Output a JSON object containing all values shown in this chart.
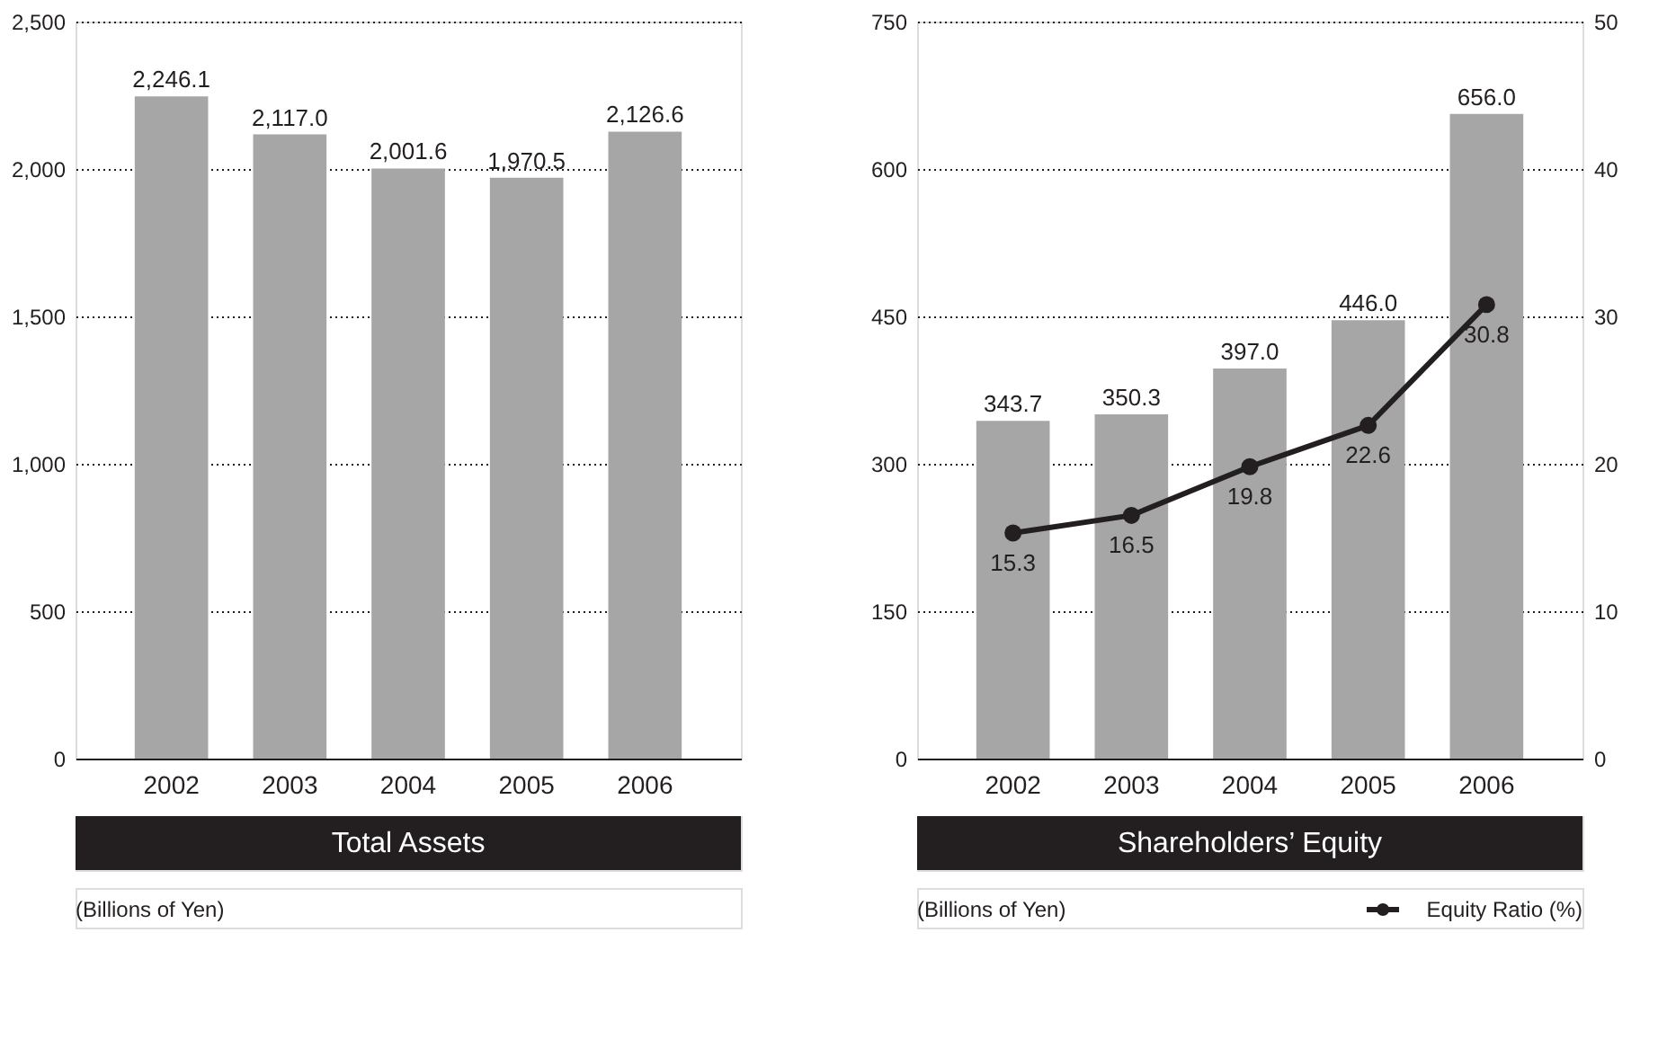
{
  "chart_data": [
    {
      "type": "bar",
      "title": "Total Assets",
      "annotations": [
        "(Billions of Yen)"
      ],
      "categories": [
        "2002",
        "2003",
        "2004",
        "2005",
        "2006"
      ],
      "values": [
        2246.1,
        2117.0,
        2001.6,
        1970.5,
        2126.6
      ],
      "value_labels": [
        "2,246.1",
        "2,117.0",
        "2,001.6",
        "1,970.5",
        "2,126.6"
      ],
      "color": "#a6a6a6",
      "ylim": [
        0,
        2500
      ],
      "yticks": [
        0,
        500,
        {
          "value": 1000,
          "label": "1,000"
        },
        {
          "value": 1500,
          "label": "1,500"
        },
        {
          "value": 2000,
          "label": "2,000"
        },
        {
          "value": 2500,
          "label": "2,500"
        }
      ],
      "grid": "y"
    },
    {
      "type": "bar",
      "title": "Shareholders’ Equity",
      "annotations": [
        "(Billions of Yen)"
      ],
      "categories": [
        "2002",
        "2003",
        "2004",
        "2005",
        "2006"
      ],
      "series": [
        {
          "type": "bar",
          "color": "#a6a6a6",
          "values": [
            343.7,
            350.3,
            397.0,
            446.0,
            656.0
          ],
          "value_labels": [
            "343.7",
            "350.3",
            "397.0",
            "446.0",
            "656.0"
          ]
        },
        {
          "type": "line",
          "name": "Equity Ratio (%)",
          "color": "#231f20",
          "axis": "y2",
          "values": [
            15.3,
            16.5,
            19.8,
            22.6,
            30.8
          ],
          "value_labels": [
            "15.3",
            "16.5",
            "19.8",
            "22.6",
            "30.8"
          ]
        }
      ],
      "ylim": [
        0,
        750
      ],
      "yticks": [
        0,
        150,
        300,
        450,
        600,
        750
      ],
      "y2lim": [
        0,
        50
      ],
      "y2ticks": [
        0,
        10,
        20,
        30,
        40,
        50
      ],
      "grid": "y",
      "legend": "bottom right",
      "marker": "circle",
      "line_style": "solid"
    }
  ]
}
